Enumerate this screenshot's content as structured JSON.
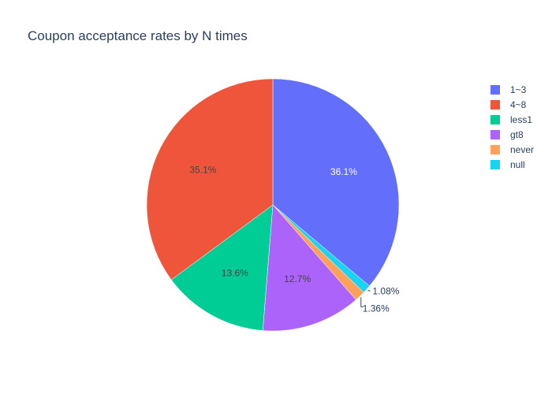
{
  "chart_data": {
    "type": "pie",
    "title": "Coupon acceptance rates by N times",
    "slices": [
      {
        "label": "1~3",
        "value": 36.1,
        "text": "36.1%",
        "color": "#636efa"
      },
      {
        "label": "null",
        "value": 1.08,
        "text": "1.08%",
        "color": "#19d3f3"
      },
      {
        "label": "never",
        "value": 1.36,
        "text": "1.36%",
        "color": "#ffa15a"
      },
      {
        "label": "gt8",
        "value": 12.7,
        "text": "12.7%",
        "color": "#ab63fa"
      },
      {
        "label": "less1",
        "value": 13.6,
        "text": "13.6%",
        "color": "#00cc96"
      },
      {
        "label": "4~8",
        "value": 35.1,
        "text": "35.1%",
        "color": "#ef553b"
      }
    ],
    "legend": {
      "position": "top-right",
      "items": [
        {
          "label": "1~3",
          "color": "#636efa"
        },
        {
          "label": "4~8",
          "color": "#ef553b"
        },
        {
          "label": "less1",
          "color": "#00cc96"
        },
        {
          "label": "gt8",
          "color": "#ab63fa"
        },
        {
          "label": "never",
          "color": "#ffa15a"
        },
        {
          "label": "null",
          "color": "#19d3f3"
        }
      ]
    }
  }
}
